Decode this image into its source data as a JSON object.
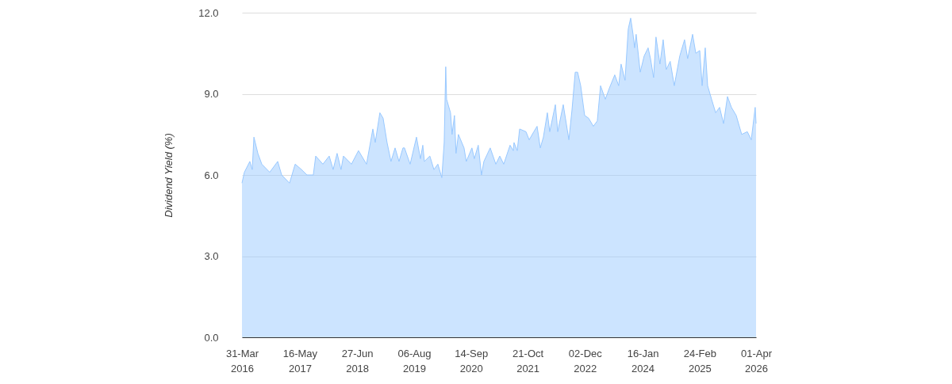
{
  "chart_data": {
    "type": "area",
    "ylabel": "Dividend Yield (%)",
    "x": [
      "2016-03-31",
      "2016-04-17",
      "2016-05-26",
      "2016-06-12",
      "2016-06-24",
      "2016-07-22",
      "2016-08-19",
      "2016-10-14",
      "2016-12-10",
      "2017-01-07",
      "2017-03-04",
      "2017-04-13",
      "2017-05-28",
      "2017-07-06",
      "2017-08-20",
      "2017-09-06",
      "2017-10-27",
      "2017-12-11",
      "2018-01-08",
      "2018-02-05",
      "2018-03-05",
      "2018-03-22",
      "2018-05-18",
      "2018-07-07",
      "2018-09-02",
      "2018-10-17",
      "2018-11-03",
      "2018-12-06",
      "2018-12-29",
      "2019-01-26",
      "2019-02-23",
      "2019-03-24",
      "2019-04-21",
      "2019-05-19",
      "2019-05-30",
      "2019-07-09",
      "2019-08-23",
      "2019-09-20",
      "2019-10-07",
      "2019-10-18",
      "2019-11-26",
      "2019-12-25",
      "2020-01-22",
      "2020-02-19",
      "2020-03-07",
      "2020-03-18",
      "2020-03-24",
      "2020-04-21",
      "2020-05-02",
      "2020-05-19",
      "2020-05-30",
      "2020-06-16",
      "2020-07-26",
      "2020-08-11",
      "2020-09-20",
      "2020-10-07",
      "2020-11-04",
      "2020-11-27",
      "2020-12-14",
      "2021-01-28",
      "2021-03-09",
      "2021-04-06",
      "2021-05-04",
      "2021-06-18",
      "2021-07-11",
      "2021-07-16",
      "2021-08-08",
      "2021-08-25",
      "2021-10-09",
      "2021-11-01",
      "2021-12-04",
      "2021-12-27",
      "2022-01-19",
      "2022-02-10",
      "2022-03-10",
      "2022-03-27",
      "2022-05-06",
      "2022-05-23",
      "2022-07-01",
      "2022-08-10",
      "2022-09-01",
      "2022-09-24",
      "2022-10-11",
      "2022-11-02",
      "2022-11-30",
      "2022-12-28",
      "2023-01-31",
      "2023-02-28",
      "2023-03-23",
      "2023-04-26",
      "2023-05-24",
      "2023-07-02",
      "2023-07-30",
      "2023-08-16",
      "2023-09-13",
      "2023-10-06",
      "2023-10-23",
      "2023-11-09",
      "2023-11-20",
      "2023-12-01",
      "2023-12-30",
      "2024-01-27",
      "2024-02-24",
      "2024-03-12",
      "2024-04-03",
      "2024-04-20",
      "2024-05-18",
      "2024-06-10",
      "2024-07-02",
      "2024-07-30",
      "2024-08-28",
      "2024-10-06",
      "2024-11-09",
      "2024-12-01",
      "2025-01-05",
      "2025-01-28",
      "2025-02-25",
      "2025-03-14",
      "2025-04-05",
      "2025-04-22",
      "2025-05-20",
      "2025-06-18",
      "2025-07-16",
      "2025-08-13",
      "2025-09-10",
      "2025-10-08",
      "2025-11-11",
      "2025-12-20",
      "2026-01-29",
      "2026-02-26",
      "2026-03-26",
      "2026-04-01"
    ],
    "series": [
      {
        "color": "#99c9ff",
        "values": [
          5.7,
          6.1,
          6.5,
          6.2,
          7.4,
          6.8,
          6.4,
          6.1,
          6.5,
          6.0,
          5.7,
          6.4,
          6.2,
          6.0,
          6.0,
          6.7,
          6.4,
          6.7,
          6.2,
          6.8,
          6.2,
          6.7,
          6.4,
          6.9,
          6.4,
          7.7,
          7.2,
          8.3,
          8.1,
          7.2,
          6.5,
          7.0,
          6.5,
          7.0,
          7.0,
          6.4,
          7.4,
          6.6,
          7.1,
          6.5,
          6.7,
          6.2,
          6.4,
          5.9,
          7.2,
          10.0,
          8.8,
          8.3,
          7.5,
          8.2,
          6.8,
          7.5,
          7.0,
          6.5,
          7.0,
          6.6,
          7.1,
          6.0,
          6.5,
          7.0,
          6.4,
          6.7,
          6.4,
          7.1,
          6.9,
          7.2,
          6.9,
          7.7,
          7.6,
          7.3,
          7.6,
          7.8,
          7.0,
          7.4,
          8.3,
          7.6,
          8.6,
          7.6,
          8.6,
          7.3,
          8.4,
          9.8,
          9.8,
          9.3,
          8.2,
          8.1,
          7.8,
          8.0,
          9.3,
          8.8,
          9.2,
          9.7,
          9.3,
          10.1,
          9.5,
          11.4,
          11.8,
          11.2,
          10.7,
          11.2,
          9.8,
          10.4,
          10.7,
          10.3,
          9.6,
          11.1,
          10.1,
          11.0,
          9.9,
          10.2,
          9.3,
          10.4,
          11.0,
          10.3,
          11.2,
          10.5,
          10.6,
          9.3,
          10.7,
          9.3,
          8.8,
          8.3,
          8.5,
          7.9,
          8.9,
          8.5,
          8.2,
          7.5,
          7.6,
          7.3,
          8.5,
          7.9
        ]
      }
    ],
    "xlim": [
      "2016-03-31",
      "2026-04-01"
    ],
    "xticks": [
      {
        "value": "2016-03-31",
        "label": "31-Mar 2016"
      },
      {
        "value": "2017-05-16",
        "label": "16-May 2017"
      },
      {
        "value": "2018-06-27",
        "label": "27-Jun 2018"
      },
      {
        "value": "2019-08-06",
        "label": "06-Aug 2019"
      },
      {
        "value": "2020-09-14",
        "label": "14-Sep 2020"
      },
      {
        "value": "2021-10-21",
        "label": "21-Oct 2021"
      },
      {
        "value": "2022-12-02",
        "label": "02-Dec 2022"
      },
      {
        "value": "2024-01-16",
        "label": "16-Jan 2024"
      },
      {
        "value": "2025-02-24",
        "label": "24-Feb 2025"
      },
      {
        "value": "2026-04-01",
        "label": "01-Apr 2026"
      }
    ],
    "ylim": [
      0,
      12
    ],
    "yticks": [
      {
        "value": 0,
        "label": "0.0"
      },
      {
        "value": 3,
        "label": "3.0"
      },
      {
        "value": 6,
        "label": "6.0"
      },
      {
        "value": 9,
        "label": "9.0"
      },
      {
        "value": 12,
        "label": "12.0"
      }
    ],
    "grid": "y"
  }
}
